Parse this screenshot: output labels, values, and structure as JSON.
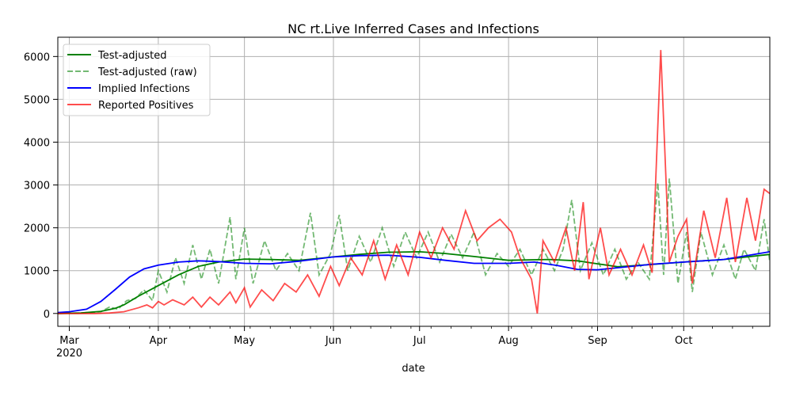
{
  "chart_data": {
    "type": "line",
    "title": "NC rt.Live Inferred Cases and Infections",
    "xlabel": "date",
    "ylabel": "",
    "xlim": [
      "2020-02-26",
      "2020-10-31"
    ],
    "ylim": [
      -300,
      6450
    ],
    "grid": true,
    "legend_position": "top-left",
    "x_ticks": [
      {
        "label": "Mar",
        "date": "2020-03-01"
      },
      {
        "label": "Apr",
        "date": "2020-04-01"
      },
      {
        "label": "May",
        "date": "2020-05-01"
      },
      {
        "label": "Jun",
        "date": "2020-06-01"
      },
      {
        "label": "Jul",
        "date": "2020-07-01"
      },
      {
        "label": "Aug",
        "date": "2020-08-01"
      },
      {
        "label": "Sep",
        "date": "2020-09-01"
      },
      {
        "label": "Oct",
        "date": "2020-10-01"
      }
    ],
    "x_year_label": "2020",
    "y_ticks": [
      0,
      1000,
      2000,
      3000,
      4000,
      5000,
      6000
    ],
    "series": [
      {
        "name": "Test-adjusted",
        "color": "#008000",
        "style": "solid",
        "points": [
          [
            "2020-02-26",
            0
          ],
          [
            "2020-03-05",
            10
          ],
          [
            "2020-03-12",
            50
          ],
          [
            "2020-03-17",
            120
          ],
          [
            "2020-03-20",
            200
          ],
          [
            "2020-03-25",
            400
          ],
          [
            "2020-04-01",
            650
          ],
          [
            "2020-04-08",
            900
          ],
          [
            "2020-04-15",
            1100
          ],
          [
            "2020-04-22",
            1200
          ],
          [
            "2020-05-01",
            1270
          ],
          [
            "2020-05-10",
            1260
          ],
          [
            "2020-05-20",
            1240
          ],
          [
            "2020-06-01",
            1320
          ],
          [
            "2020-06-10",
            1380
          ],
          [
            "2020-06-20",
            1430
          ],
          [
            "2020-07-01",
            1440
          ],
          [
            "2020-07-10",
            1400
          ],
          [
            "2020-07-20",
            1330
          ],
          [
            "2020-08-01",
            1240
          ],
          [
            "2020-08-15",
            1260
          ],
          [
            "2020-08-25",
            1230
          ],
          [
            "2020-09-01",
            1160
          ],
          [
            "2020-09-08",
            1090
          ],
          [
            "2020-09-15",
            1120
          ],
          [
            "2020-10-01",
            1200
          ],
          [
            "2020-10-15",
            1260
          ],
          [
            "2020-10-31",
            1380
          ]
        ]
      },
      {
        "name": "Test-adjusted (raw)",
        "color": "#008000",
        "style": "dashed",
        "points": [
          [
            "2020-02-26",
            0
          ],
          [
            "2020-03-05",
            10
          ],
          [
            "2020-03-12",
            40
          ],
          [
            "2020-03-15",
            150
          ],
          [
            "2020-03-18",
            100
          ],
          [
            "2020-03-21",
            300
          ],
          [
            "2020-03-24",
            350
          ],
          [
            "2020-03-27",
            550
          ],
          [
            "2020-03-30",
            300
          ],
          [
            "2020-04-01",
            1000
          ],
          [
            "2020-04-04",
            500
          ],
          [
            "2020-04-07",
            1300
          ],
          [
            "2020-04-10",
            700
          ],
          [
            "2020-04-13",
            1600
          ],
          [
            "2020-04-16",
            800
          ],
          [
            "2020-04-19",
            1500
          ],
          [
            "2020-04-22",
            700
          ],
          [
            "2020-04-26",
            2250
          ],
          [
            "2020-04-28",
            800
          ],
          [
            "2020-05-01",
            2000
          ],
          [
            "2020-05-04",
            700
          ],
          [
            "2020-05-08",
            1700
          ],
          [
            "2020-05-12",
            1000
          ],
          [
            "2020-05-16",
            1400
          ],
          [
            "2020-05-20",
            1000
          ],
          [
            "2020-05-24",
            2350
          ],
          [
            "2020-05-27",
            900
          ],
          [
            "2020-05-31",
            1400
          ],
          [
            "2020-06-03",
            2300
          ],
          [
            "2020-06-06",
            1000
          ],
          [
            "2020-06-10",
            1800
          ],
          [
            "2020-06-14",
            1200
          ],
          [
            "2020-06-18",
            2000
          ],
          [
            "2020-06-22",
            1100
          ],
          [
            "2020-06-26",
            1900
          ],
          [
            "2020-06-30",
            1300
          ],
          [
            "2020-07-04",
            1900
          ],
          [
            "2020-07-08",
            1200
          ],
          [
            "2020-07-12",
            1850
          ],
          [
            "2020-07-16",
            1300
          ],
          [
            "2020-07-20",
            1900
          ],
          [
            "2020-07-24",
            900
          ],
          [
            "2020-07-28",
            1400
          ],
          [
            "2020-08-01",
            1100
          ],
          [
            "2020-08-05",
            1500
          ],
          [
            "2020-08-09",
            900
          ],
          [
            "2020-08-13",
            1500
          ],
          [
            "2020-08-17",
            1000
          ],
          [
            "2020-08-20",
            1500
          ],
          [
            "2020-08-23",
            2650
          ],
          [
            "2020-08-26",
            1000
          ],
          [
            "2020-08-30",
            1650
          ],
          [
            "2020-09-03",
            900
          ],
          [
            "2020-09-07",
            1500
          ],
          [
            "2020-09-11",
            800
          ],
          [
            "2020-09-15",
            1200
          ],
          [
            "2020-09-19",
            800
          ],
          [
            "2020-09-22",
            3050
          ],
          [
            "2020-09-24",
            900
          ],
          [
            "2020-09-26",
            3150
          ],
          [
            "2020-09-29",
            700
          ],
          [
            "2020-10-02",
            1900
          ],
          [
            "2020-10-04",
            500
          ],
          [
            "2020-10-07",
            1900
          ],
          [
            "2020-10-11",
            900
          ],
          [
            "2020-10-15",
            1600
          ],
          [
            "2020-10-19",
            800
          ],
          [
            "2020-10-22",
            1500
          ],
          [
            "2020-10-26",
            1000
          ],
          [
            "2020-10-29",
            2200
          ],
          [
            "2020-10-31",
            1200
          ]
        ]
      },
      {
        "name": "Implied Infections",
        "color": "#0000ff",
        "style": "solid",
        "points": [
          [
            "2020-02-26",
            20
          ],
          [
            "2020-03-01",
            40
          ],
          [
            "2020-03-07",
            100
          ],
          [
            "2020-03-12",
            280
          ],
          [
            "2020-03-17",
            560
          ],
          [
            "2020-03-22",
            850
          ],
          [
            "2020-03-27",
            1040
          ],
          [
            "2020-04-01",
            1130
          ],
          [
            "2020-04-08",
            1200
          ],
          [
            "2020-04-15",
            1230
          ],
          [
            "2020-04-22",
            1210
          ],
          [
            "2020-05-01",
            1170
          ],
          [
            "2020-05-10",
            1160
          ],
          [
            "2020-05-20",
            1220
          ],
          [
            "2020-06-01",
            1320
          ],
          [
            "2020-06-10",
            1350
          ],
          [
            "2020-06-20",
            1360
          ],
          [
            "2020-07-01",
            1310
          ],
          [
            "2020-07-10",
            1240
          ],
          [
            "2020-07-20",
            1170
          ],
          [
            "2020-08-01",
            1170
          ],
          [
            "2020-08-10",
            1200
          ],
          [
            "2020-08-18",
            1120
          ],
          [
            "2020-08-25",
            1030
          ],
          [
            "2020-09-01",
            1020
          ],
          [
            "2020-09-10",
            1080
          ],
          [
            "2020-09-20",
            1150
          ],
          [
            "2020-10-01",
            1200
          ],
          [
            "2020-10-15",
            1260
          ],
          [
            "2020-10-31",
            1440
          ]
        ]
      },
      {
        "name": "Reported Positives",
        "color": "#ff0000",
        "style": "solid",
        "points": [
          [
            "2020-02-26",
            0
          ],
          [
            "2020-03-10",
            0
          ],
          [
            "2020-03-15",
            10
          ],
          [
            "2020-03-20",
            40
          ],
          [
            "2020-03-25",
            130
          ],
          [
            "2020-03-28",
            200
          ],
          [
            "2020-03-30",
            130
          ],
          [
            "2020-04-01",
            280
          ],
          [
            "2020-04-03",
            200
          ],
          [
            "2020-04-06",
            320
          ],
          [
            "2020-04-10",
            200
          ],
          [
            "2020-04-13",
            380
          ],
          [
            "2020-04-16",
            150
          ],
          [
            "2020-04-19",
            380
          ],
          [
            "2020-04-22",
            200
          ],
          [
            "2020-04-26",
            500
          ],
          [
            "2020-04-28",
            250
          ],
          [
            "2020-05-01",
            600
          ],
          [
            "2020-05-03",
            150
          ],
          [
            "2020-05-07",
            550
          ],
          [
            "2020-05-11",
            300
          ],
          [
            "2020-05-15",
            700
          ],
          [
            "2020-05-19",
            500
          ],
          [
            "2020-05-23",
            900
          ],
          [
            "2020-05-27",
            400
          ],
          [
            "2020-05-31",
            1100
          ],
          [
            "2020-06-03",
            650
          ],
          [
            "2020-06-07",
            1300
          ],
          [
            "2020-06-11",
            900
          ],
          [
            "2020-06-15",
            1700
          ],
          [
            "2020-06-19",
            800
          ],
          [
            "2020-06-23",
            1600
          ],
          [
            "2020-06-27",
            900
          ],
          [
            "2020-07-01",
            1900
          ],
          [
            "2020-07-05",
            1300
          ],
          [
            "2020-07-09",
            2000
          ],
          [
            "2020-07-13",
            1500
          ],
          [
            "2020-07-17",
            2400
          ],
          [
            "2020-07-21",
            1700
          ],
          [
            "2020-07-25",
            2000
          ],
          [
            "2020-07-29",
            2200
          ],
          [
            "2020-08-02",
            1900
          ],
          [
            "2020-08-05",
            1300
          ],
          [
            "2020-08-09",
            800
          ],
          [
            "2020-08-11",
            0
          ],
          [
            "2020-08-13",
            1700
          ],
          [
            "2020-08-17",
            1200
          ],
          [
            "2020-08-21",
            2000
          ],
          [
            "2020-08-24",
            1000
          ],
          [
            "2020-08-27",
            2600
          ],
          [
            "2020-08-29",
            800
          ],
          [
            "2020-09-02",
            2000
          ],
          [
            "2020-09-05",
            900
          ],
          [
            "2020-09-09",
            1500
          ],
          [
            "2020-09-13",
            900
          ],
          [
            "2020-09-17",
            1600
          ],
          [
            "2020-09-20",
            950
          ],
          [
            "2020-09-23",
            6150
          ],
          [
            "2020-09-26",
            1200
          ],
          [
            "2020-09-29",
            1800
          ],
          [
            "2020-10-02",
            2200
          ],
          [
            "2020-10-04",
            700
          ],
          [
            "2020-10-08",
            2400
          ],
          [
            "2020-10-12",
            1300
          ],
          [
            "2020-10-16",
            2700
          ],
          [
            "2020-10-19",
            1200
          ],
          [
            "2020-10-23",
            2700
          ],
          [
            "2020-10-26",
            1700
          ],
          [
            "2020-10-29",
            2900
          ],
          [
            "2020-10-31",
            2800
          ]
        ]
      }
    ]
  }
}
